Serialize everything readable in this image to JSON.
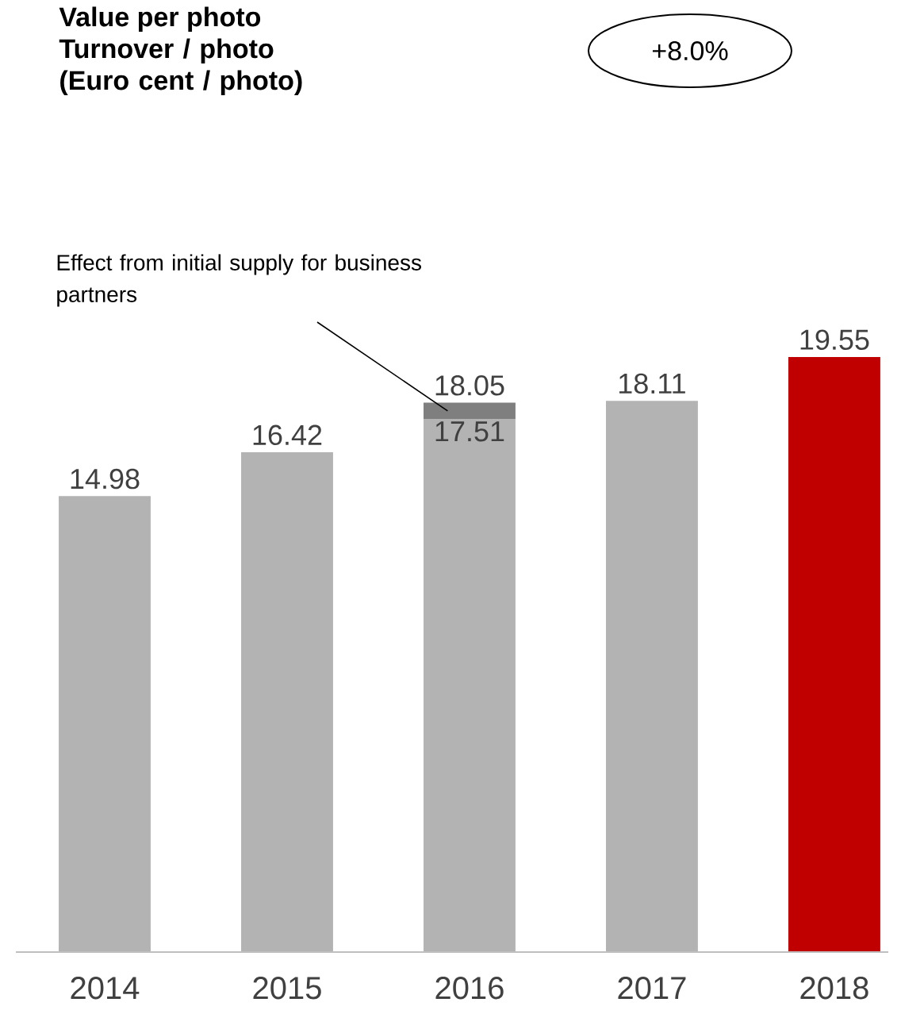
{
  "chart_data": {
    "type": "bar",
    "stacked": true,
    "title": "Value per photo",
    "subtitle": "Turnover / photo (Euro cent / photo)",
    "categories": [
      "2014",
      "2015",
      "2016",
      "2017",
      "2018"
    ],
    "series": [
      {
        "colors": [
          "#b3b3b3",
          "#b3b3b3",
          "#b3b3b3",
          "#b3b3b3",
          "#c00000"
        ],
        "values": [
          14.98,
          16.42,
          17.51,
          18.11,
          19.55
        ],
        "value_labels": [
          null,
          null,
          "17.51",
          null,
          null
        ]
      },
      {
        "color": "#7f7f7f",
        "values": [
          null,
          null,
          0.54,
          null,
          null
        ]
      }
    ],
    "totals": [
      "14.98",
      "16.42",
      "18.05",
      "18.11",
      "19.55"
    ],
    "annotations": [
      "+8.0%",
      "Effect from initial supply for business partners"
    ]
  }
}
